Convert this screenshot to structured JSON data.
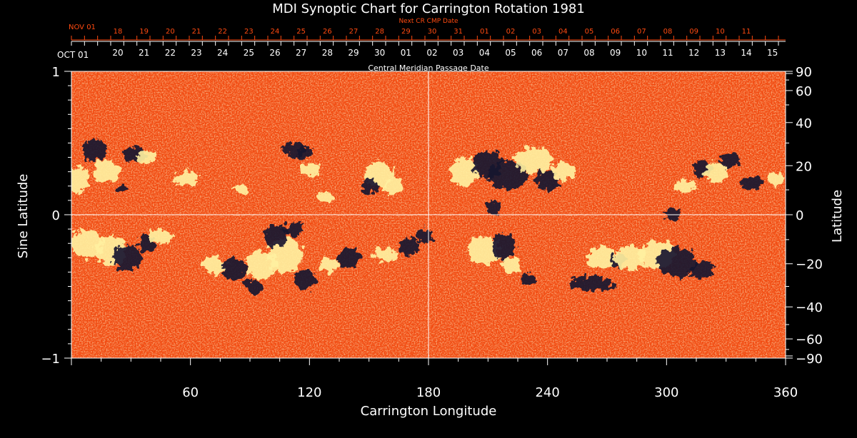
{
  "chart_data": {
    "type": "heatmap",
    "title": "MDI Synoptic Chart for Carrington Rotation 1981",
    "xlabel": "Carrington Longitude",
    "ylabel_left": "Sine Latitude",
    "ylabel_right": "Latitude",
    "top_axis_label": "Central Meridian Passage Date",
    "next_cr_label": "Next CR CMP Date",
    "xlim": [
      0,
      360
    ],
    "ylim": [
      -1,
      1
    ],
    "x_ticks": [
      60,
      120,
      180,
      240,
      300,
      360
    ],
    "y_ticks_left": [
      1,
      0,
      -1
    ],
    "y_ticks_left_labels": [
      "1",
      "0",
      "−1"
    ],
    "y_ticks_right_latitudes": [
      90,
      60,
      40,
      20,
      0,
      -20,
      -40,
      -60,
      -90
    ],
    "y_ticks_right_labels": [
      "90",
      "60",
      "40",
      "20",
      "0",
      "−20",
      "−40",
      "−60",
      "−90"
    ],
    "guide_lines": {
      "longitude": 180,
      "sine_latitude": 0
    },
    "cmp_dates": {
      "first_label": "OCT 01",
      "first_longitude": 360,
      "labels": [
        "15",
        "14",
        "13",
        "12",
        "11",
        "10",
        "09",
        "08",
        "07",
        "06",
        "05",
        "04",
        "03",
        "02",
        "01",
        "30",
        "29",
        "28",
        "27",
        "26",
        "25",
        "24",
        "23",
        "22",
        "21",
        "20"
      ],
      "label_longitudes": [
        353.4,
        340.2,
        327.0,
        313.8,
        300.6,
        287.4,
        274.2,
        261.0,
        247.8,
        234.6,
        221.4,
        208.2,
        195.0,
        181.8,
        168.6,
        155.4,
        142.2,
        129.0,
        115.8,
        102.6,
        89.4,
        76.2,
        63.0,
        49.8,
        36.6,
        23.4
      ]
    },
    "next_cr_dates": {
      "first_label": "NOV 01",
      "first_longitude": 360,
      "labels": [
        "11",
        "10",
        "09",
        "08",
        "07",
        "06",
        "05",
        "04",
        "03",
        "02",
        "01",
        "31",
        "30",
        "29",
        "28",
        "27",
        "26",
        "25",
        "24",
        "23",
        "22",
        "21",
        "20",
        "19",
        "18"
      ],
      "label_longitudes": [
        340.2,
        327.0,
        313.8,
        300.6,
        287.4,
        274.2,
        261.0,
        247.8,
        234.6,
        221.4,
        208.2,
        195.0,
        181.8,
        168.6,
        155.4,
        142.2,
        129.0,
        115.8,
        102.6,
        89.4,
        76.2,
        63.0,
        49.8,
        36.6,
        23.4
      ]
    },
    "colors": {
      "background": "#000000",
      "text": "#ffffff",
      "next_cr_text": "#ff4a10",
      "field_base": "#f24a10",
      "positive_polarity": "#fff0a0",
      "negative_polarity": "#1a1430",
      "guide_line": "#ffffff"
    },
    "regions": [
      {
        "lon": 3,
        "sinlat": 0.25,
        "rlon": 6,
        "rsin": 0.09,
        "polarity": "positive"
      },
      {
        "lon": 12,
        "sinlat": 0.45,
        "rlon": 6,
        "rsin": 0.08,
        "polarity": "negative"
      },
      {
        "lon": 18,
        "sinlat": 0.3,
        "rlon": 7,
        "rsin": 0.08,
        "polarity": "positive"
      },
      {
        "lon": 32,
        "sinlat": 0.42,
        "rlon": 6,
        "rsin": 0.05,
        "polarity": "negative"
      },
      {
        "lon": 38,
        "sinlat": 0.4,
        "rlon": 5,
        "rsin": 0.05,
        "polarity": "positive"
      },
      {
        "lon": 25,
        "sinlat": 0.18,
        "rlon": 3,
        "rsin": 0.03,
        "polarity": "negative"
      },
      {
        "lon": 58,
        "sinlat": 0.25,
        "rlon": 6,
        "rsin": 0.05,
        "polarity": "positive"
      },
      {
        "lon": 85,
        "sinlat": 0.18,
        "rlon": 3,
        "rsin": 0.03,
        "polarity": "positive"
      },
      {
        "lon": 112,
        "sinlat": 0.46,
        "rlon": 6,
        "rsin": 0.05,
        "polarity": "negative"
      },
      {
        "lon": 120,
        "sinlat": 0.32,
        "rlon": 5,
        "rsin": 0.05,
        "polarity": "positive"
      },
      {
        "lon": 118,
        "sinlat": 0.43,
        "rlon": 4,
        "rsin": 0.04,
        "polarity": "negative"
      },
      {
        "lon": 128,
        "sinlat": 0.12,
        "rlon": 4,
        "rsin": 0.03,
        "polarity": "positive"
      },
      {
        "lon": 155,
        "sinlat": 0.28,
        "rlon": 7,
        "rsin": 0.09,
        "polarity": "positive"
      },
      {
        "lon": 150,
        "sinlat": 0.2,
        "rlon": 4,
        "rsin": 0.05,
        "polarity": "negative"
      },
      {
        "lon": 162,
        "sinlat": 0.2,
        "rlon": 5,
        "rsin": 0.06,
        "polarity": "positive"
      },
      {
        "lon": 198,
        "sinlat": 0.3,
        "rlon": 7,
        "rsin": 0.1,
        "polarity": "positive"
      },
      {
        "lon": 210,
        "sinlat": 0.35,
        "rlon": 7,
        "rsin": 0.1,
        "polarity": "negative"
      },
      {
        "lon": 220,
        "sinlat": 0.28,
        "rlon": 10,
        "rsin": 0.1,
        "polarity": "negative"
      },
      {
        "lon": 233,
        "sinlat": 0.38,
        "rlon": 10,
        "rsin": 0.09,
        "polarity": "positive"
      },
      {
        "lon": 240,
        "sinlat": 0.24,
        "rlon": 6,
        "rsin": 0.07,
        "polarity": "negative"
      },
      {
        "lon": 248,
        "sinlat": 0.3,
        "rlon": 6,
        "rsin": 0.06,
        "polarity": "positive"
      },
      {
        "lon": 213,
        "sinlat": 0.05,
        "rlon": 4,
        "rsin": 0.05,
        "polarity": "negative"
      },
      {
        "lon": 303,
        "sinlat": 0.0,
        "rlon": 4,
        "rsin": 0.05,
        "polarity": "negative"
      },
      {
        "lon": 310,
        "sinlat": 0.2,
        "rlon": 5,
        "rsin": 0.05,
        "polarity": "positive"
      },
      {
        "lon": 318,
        "sinlat": 0.32,
        "rlon": 5,
        "rsin": 0.06,
        "polarity": "negative"
      },
      {
        "lon": 325,
        "sinlat": 0.3,
        "rlon": 6,
        "rsin": 0.07,
        "polarity": "positive"
      },
      {
        "lon": 332,
        "sinlat": 0.38,
        "rlon": 5,
        "rsin": 0.05,
        "polarity": "negative"
      },
      {
        "lon": 343,
        "sinlat": 0.22,
        "rlon": 5,
        "rsin": 0.05,
        "polarity": "negative"
      },
      {
        "lon": 355,
        "sinlat": 0.25,
        "rlon": 4,
        "rsin": 0.05,
        "polarity": "positive"
      },
      {
        "lon": 8,
        "sinlat": -0.2,
        "rlon": 8,
        "rsin": 0.1,
        "polarity": "positive"
      },
      {
        "lon": 20,
        "sinlat": -0.25,
        "rlon": 8,
        "rsin": 0.1,
        "polarity": "positive"
      },
      {
        "lon": 28,
        "sinlat": -0.3,
        "rlon": 7,
        "rsin": 0.09,
        "polarity": "negative"
      },
      {
        "lon": 38,
        "sinlat": -0.2,
        "rlon": 5,
        "rsin": 0.06,
        "polarity": "negative"
      },
      {
        "lon": 45,
        "sinlat": -0.15,
        "rlon": 6,
        "rsin": 0.05,
        "polarity": "positive"
      },
      {
        "lon": 72,
        "sinlat": -0.35,
        "rlon": 6,
        "rsin": 0.06,
        "polarity": "positive"
      },
      {
        "lon": 82,
        "sinlat": -0.38,
        "rlon": 6,
        "rsin": 0.08,
        "polarity": "negative"
      },
      {
        "lon": 92,
        "sinlat": -0.5,
        "rlon": 5,
        "rsin": 0.05,
        "polarity": "negative"
      },
      {
        "lon": 96,
        "sinlat": -0.35,
        "rlon": 8,
        "rsin": 0.1,
        "polarity": "positive"
      },
      {
        "lon": 108,
        "sinlat": -0.28,
        "rlon": 9,
        "rsin": 0.12,
        "polarity": "positive"
      },
      {
        "lon": 103,
        "sinlat": -0.15,
        "rlon": 6,
        "rsin": 0.08,
        "polarity": "negative"
      },
      {
        "lon": 112,
        "sinlat": -0.1,
        "rlon": 5,
        "rsin": 0.05,
        "polarity": "negative"
      },
      {
        "lon": 118,
        "sinlat": -0.45,
        "rlon": 6,
        "rsin": 0.07,
        "polarity": "negative"
      },
      {
        "lon": 130,
        "sinlat": -0.35,
        "rlon": 5,
        "rsin": 0.05,
        "polarity": "positive"
      },
      {
        "lon": 140,
        "sinlat": -0.3,
        "rlon": 6,
        "rsin": 0.07,
        "polarity": "negative"
      },
      {
        "lon": 158,
        "sinlat": -0.28,
        "rlon": 6,
        "rsin": 0.05,
        "polarity": "positive"
      },
      {
        "lon": 170,
        "sinlat": -0.22,
        "rlon": 5,
        "rsin": 0.06,
        "polarity": "negative"
      },
      {
        "lon": 178,
        "sinlat": -0.15,
        "rlon": 4,
        "rsin": 0.05,
        "polarity": "negative"
      },
      {
        "lon": 208,
        "sinlat": -0.25,
        "rlon": 8,
        "rsin": 0.1,
        "polarity": "positive"
      },
      {
        "lon": 218,
        "sinlat": -0.22,
        "rlon": 6,
        "rsin": 0.09,
        "polarity": "negative"
      },
      {
        "lon": 222,
        "sinlat": -0.35,
        "rlon": 5,
        "rsin": 0.06,
        "polarity": "positive"
      },
      {
        "lon": 230,
        "sinlat": -0.45,
        "rlon": 4,
        "rsin": 0.04,
        "polarity": "negative"
      },
      {
        "lon": 268,
        "sinlat": -0.3,
        "rlon": 8,
        "rsin": 0.08,
        "polarity": "positive"
      },
      {
        "lon": 275,
        "sinlat": -0.32,
        "rlon": 4,
        "rsin": 0.05,
        "polarity": "negative"
      },
      {
        "lon": 282,
        "sinlat": -0.3,
        "rlon": 8,
        "rsin": 0.08,
        "polarity": "positive"
      },
      {
        "lon": 295,
        "sinlat": -0.28,
        "rlon": 9,
        "rsin": 0.1,
        "polarity": "positive"
      },
      {
        "lon": 305,
        "sinlat": -0.33,
        "rlon": 10,
        "rsin": 0.1,
        "polarity": "negative"
      },
      {
        "lon": 318,
        "sinlat": -0.38,
        "rlon": 6,
        "rsin": 0.06,
        "polarity": "negative"
      },
      {
        "lon": 262,
        "sinlat": -0.48,
        "rlon": 12,
        "rsin": 0.05,
        "polarity": "negative"
      }
    ]
  }
}
